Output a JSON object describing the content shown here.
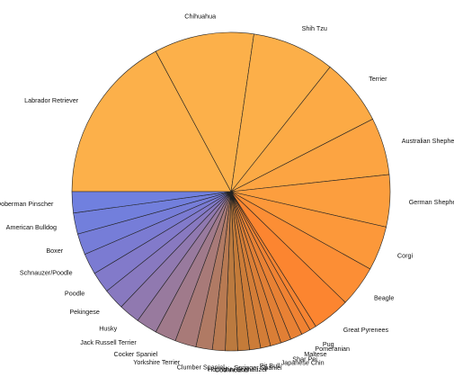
{
  "chart_data": {
    "type": "pie",
    "title": "",
    "start_angle_deg": 180,
    "direction": "clockwise",
    "slices": [
      {
        "label": "Labrador Retriever",
        "value": 13.04,
        "color": "#FCB04A"
      },
      {
        "label": "Chihuahua",
        "value": 7.71,
        "color": "#FCB04A"
      },
      {
        "label": "Shih Tzu",
        "value": 6.38,
        "color": "#FCAF49"
      },
      {
        "label": "Terrier",
        "value": 5.15,
        "color": "#FCAA45"
      },
      {
        "label": "Australian Shepherd",
        "value": 4.42,
        "color": "#FCA442"
      },
      {
        "label": "German Shepherd",
        "value": 4.02,
        "color": "#FC9E3E"
      },
      {
        "label": "Corgi",
        "value": 3.42,
        "color": "#FC983A"
      },
      {
        "label": "Beagle",
        "value": 3.17,
        "color": "#FC8E35"
      },
      {
        "label": "Great Pyrenees",
        "value": 2.9,
        "color": "#FC8530"
      },
      {
        "label": "Pug",
        "value": 0.51,
        "color": "#F78431"
      },
      {
        "label": "Pomeranian",
        "value": 0.71,
        "color": "#F08232"
      },
      {
        "label": "Maltese",
        "value": 0.92,
        "color": "#E88134"
      },
      {
        "label": "Shar Pei",
        "value": 0.8,
        "color": "#E17F35"
      },
      {
        "label": "Japanese Chin",
        "value": 0.82,
        "color": "#DA7E36"
      },
      {
        "label": "Pit Bull",
        "value": 0.77,
        "color": "#D37D37"
      },
      {
        "label": "Springer Spaniel",
        "value": 0.86,
        "color": "#CC7C38"
      },
      {
        "label": "Mini Schnauzer",
        "value": 0.9,
        "color": "#C47B39"
      },
      {
        "label": "Coonhound",
        "value": 0.95,
        "color": "#BB7A3F"
      },
      {
        "label": "Hound",
        "value": 0.99,
        "color": "#B87A52"
      },
      {
        "label": "Clumber Spaniel",
        "value": 1.27,
        "color": "#B07A64"
      },
      {
        "label": "Yorkshire Terrier",
        "value": 1.63,
        "color": "#A87A78"
      },
      {
        "label": "Cocker Spaniel",
        "value": 1.63,
        "color": "#A07A8B"
      },
      {
        "label": "Jack Russell Terrier",
        "value": 1.63,
        "color": "#987A9E"
      },
      {
        "label": "Husky",
        "value": 1.63,
        "color": "#9079B0"
      },
      {
        "label": "Pekingese",
        "value": 1.63,
        "color": "#8879C0"
      },
      {
        "label": "Poodle",
        "value": 1.63,
        "color": "#827ACA"
      },
      {
        "label": "Schnauzer/Poodle",
        "value": 1.63,
        "color": "#7B7BD2"
      },
      {
        "label": "Boxer",
        "value": 1.63,
        "color": "#767DD8"
      },
      {
        "label": "American Bulldog",
        "value": 1.63,
        "color": "#727FDC"
      },
      {
        "label": "Doberman Pinscher",
        "value": 1.63,
        "color": "#7080DF"
      }
    ]
  }
}
